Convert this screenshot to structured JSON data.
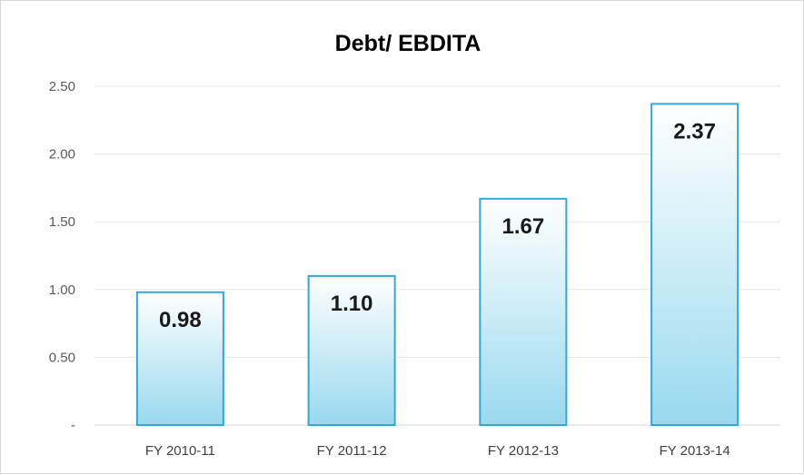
{
  "chart_data": {
    "type": "bar",
    "title": "Debt/ EBDITA",
    "xlabel": "",
    "ylabel": "",
    "categories": [
      "FY 2010-11",
      "FY 2011-12",
      "FY 2012-13",
      "FY 2013-14"
    ],
    "values": [
      0.98,
      1.1,
      1.67,
      2.37
    ],
    "data_labels": [
      "0.98",
      "1.10",
      "1.67",
      "2.37"
    ],
    "ylim": [
      0,
      2.5
    ],
    "y_ticks": [
      {
        "value": 0,
        "label": "-"
      },
      {
        "value": 0.5,
        "label": "0.50"
      },
      {
        "value": 1.0,
        "label": "1.00"
      },
      {
        "value": 1.5,
        "label": "1.50"
      },
      {
        "value": 2.0,
        "label": "2.00"
      },
      {
        "value": 2.5,
        "label": "2.50"
      }
    ],
    "grid": true,
    "legend": "none",
    "colors": {
      "bar_top": "#ffffff",
      "bar_bottom": "#99d9ef",
      "bar_border": "#31a8d5",
      "gridline": "#e6e6e6",
      "axis_line": "#d9d9d9"
    }
  }
}
